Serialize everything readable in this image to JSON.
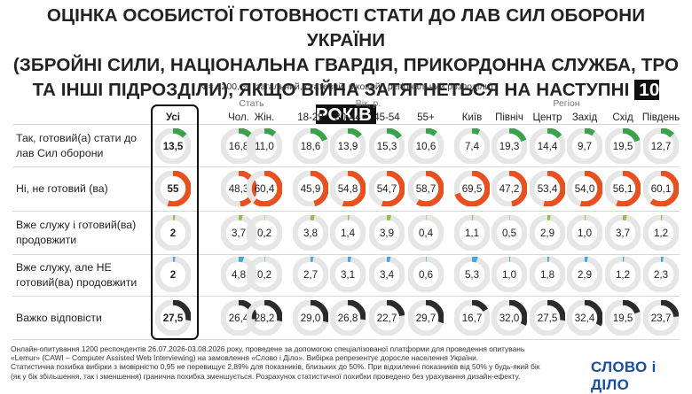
{
  "title": {
    "line1": "ОЦІНКА ОСОБИСТОЇ ГОТОВНОСТІ СТАТИ ДО ЛАВ СИЛ ОБОРОНИ УКРАЇНИ",
    "line2": "(ЗБРОЙНІ СИЛИ, НАЦІОНАЛЬНА ГВАРДІЯ, ПРИКОРДОННА СЛУЖБА, ТРО",
    "line3_text": "ТА ІНШІ ПІДРОЗДІЛИ), ЯКЩО ВІЙНА ЗАТЯГНЕТЬСЯ НА НАСТУПНІ",
    "line3_highlight": "10 РОКІВ"
  },
  "subtitle": "N = 1200, % (загальний, статевий, віковий і регіональний розподіли)",
  "chart_data": {
    "type": "donut-table",
    "groups": [
      {
        "name": "",
        "columns": [
          "Усі"
        ]
      },
      {
        "name": "Стать",
        "columns": [
          "Чол.",
          "Жін."
        ]
      },
      {
        "name": "Вік, р.",
        "columns": [
          "18-29",
          "30-44",
          "45-54",
          "55+"
        ]
      },
      {
        "name": "Регіон",
        "columns": [
          "Київ",
          "Північ",
          "Центр",
          "Захід",
          "Схід",
          "Південь"
        ]
      }
    ],
    "columns": [
      "Усі",
      "Чол.",
      "Жін.",
      "18-29",
      "30-44",
      "45-54",
      "55+",
      "Київ",
      "Північ",
      "Центр",
      "Захід",
      "Схід",
      "Південь"
    ],
    "rows": [
      {
        "label": "Так, готовий(а) стати до лав Сил оборони",
        "color": "#3aa24a",
        "values": [
          13.5,
          16.8,
          11.0,
          18.6,
          13.9,
          15.3,
          10.6,
          7.4,
          19.3,
          14.4,
          9.7,
          19.5,
          12.7
        ],
        "display": [
          "13,5",
          "16,8",
          "11,0",
          "18,6",
          "13,9",
          "15,3",
          "10,6",
          "7,4",
          "19,3",
          "14,4",
          "9,7",
          "19,5",
          "12,7"
        ]
      },
      {
        "label": "Ні, не готовий (ва)",
        "color": "#e9501f",
        "values": [
          55,
          48.3,
          60.4,
          45.9,
          54.8,
          54.7,
          58.7,
          69.5,
          47.2,
          53.4,
          54.0,
          56.1,
          60.1
        ],
        "display": [
          "55",
          "48,3",
          "60,4",
          "45,9",
          "54,8",
          "54,7",
          "58,7",
          "69,5",
          "47,2",
          "53,4",
          "54,0",
          "56,1",
          "60,1"
        ]
      },
      {
        "label": "Вже служу і готовий(ва) продовжити",
        "color": "#8cc63f",
        "values": [
          2,
          3.7,
          0.2,
          3.8,
          1.4,
          3.9,
          0.4,
          1.1,
          0.5,
          2.9,
          1.0,
          3.7,
          1.2
        ],
        "display": [
          "2",
          "3,7",
          "0,2",
          "3,8",
          "1,4",
          "3,9",
          "0,4",
          "1,1",
          "0,5",
          "2,9",
          "1,0",
          "3,7",
          "1,2"
        ]
      },
      {
        "label": "Вже служу, але НЕ готовий(ва) продовжити",
        "color": "#3fa9e0",
        "values": [
          2,
          4.8,
          0.2,
          2.7,
          3.1,
          3.4,
          0.6,
          5.3,
          1.0,
          1.8,
          2.9,
          1.2,
          2.3
        ],
        "display": [
          "2",
          "4,8",
          "0,2",
          "2,7",
          "3,1",
          "3,4",
          "0,6",
          "5,3",
          "1,0",
          "1,8",
          "2,9",
          "1,2",
          "2,3"
        ]
      },
      {
        "label": "Важко відповісти",
        "color": "#2b2b2b",
        "values": [
          27.5,
          26.4,
          28.2,
          29.0,
          26.8,
          22.7,
          29.7,
          16.7,
          32.0,
          27.5,
          32.4,
          19.5,
          23.7
        ],
        "display": [
          "27,5",
          "26,4",
          "28,2",
          "29,0",
          "26,8",
          "22,7",
          "29,7",
          "16,7",
          "32,0",
          "27,5",
          "32,4",
          "19,5",
          "23,7"
        ]
      }
    ],
    "track_color": "#e6e6e6"
  },
  "footer": [
    "Онлайн-опитування 1200 респондентів 26.07.2026-03.08.2026 року, проведене за допомогою спеціалізованої платформи для проведення опитувань",
    "«Lemur» (CAWI – Computer Assisted Web Interviewing) на замовлення «Слово і Діло». Вибірка репрезентує доросле населення України.",
    "Статистична похибка вибірки з імовірністю 0,95 не перевищує 2,89% для показників, близьких до 50%. При відхиленні показників від 50% у будь-який бік",
    "(як у бік збільшення, так і зменшення) гранична похибка зменшується. Розрахунок статистичної похибки проведено без урахування дизайн-ефекту."
  ],
  "logo": "СЛОВО і ДІЛО"
}
